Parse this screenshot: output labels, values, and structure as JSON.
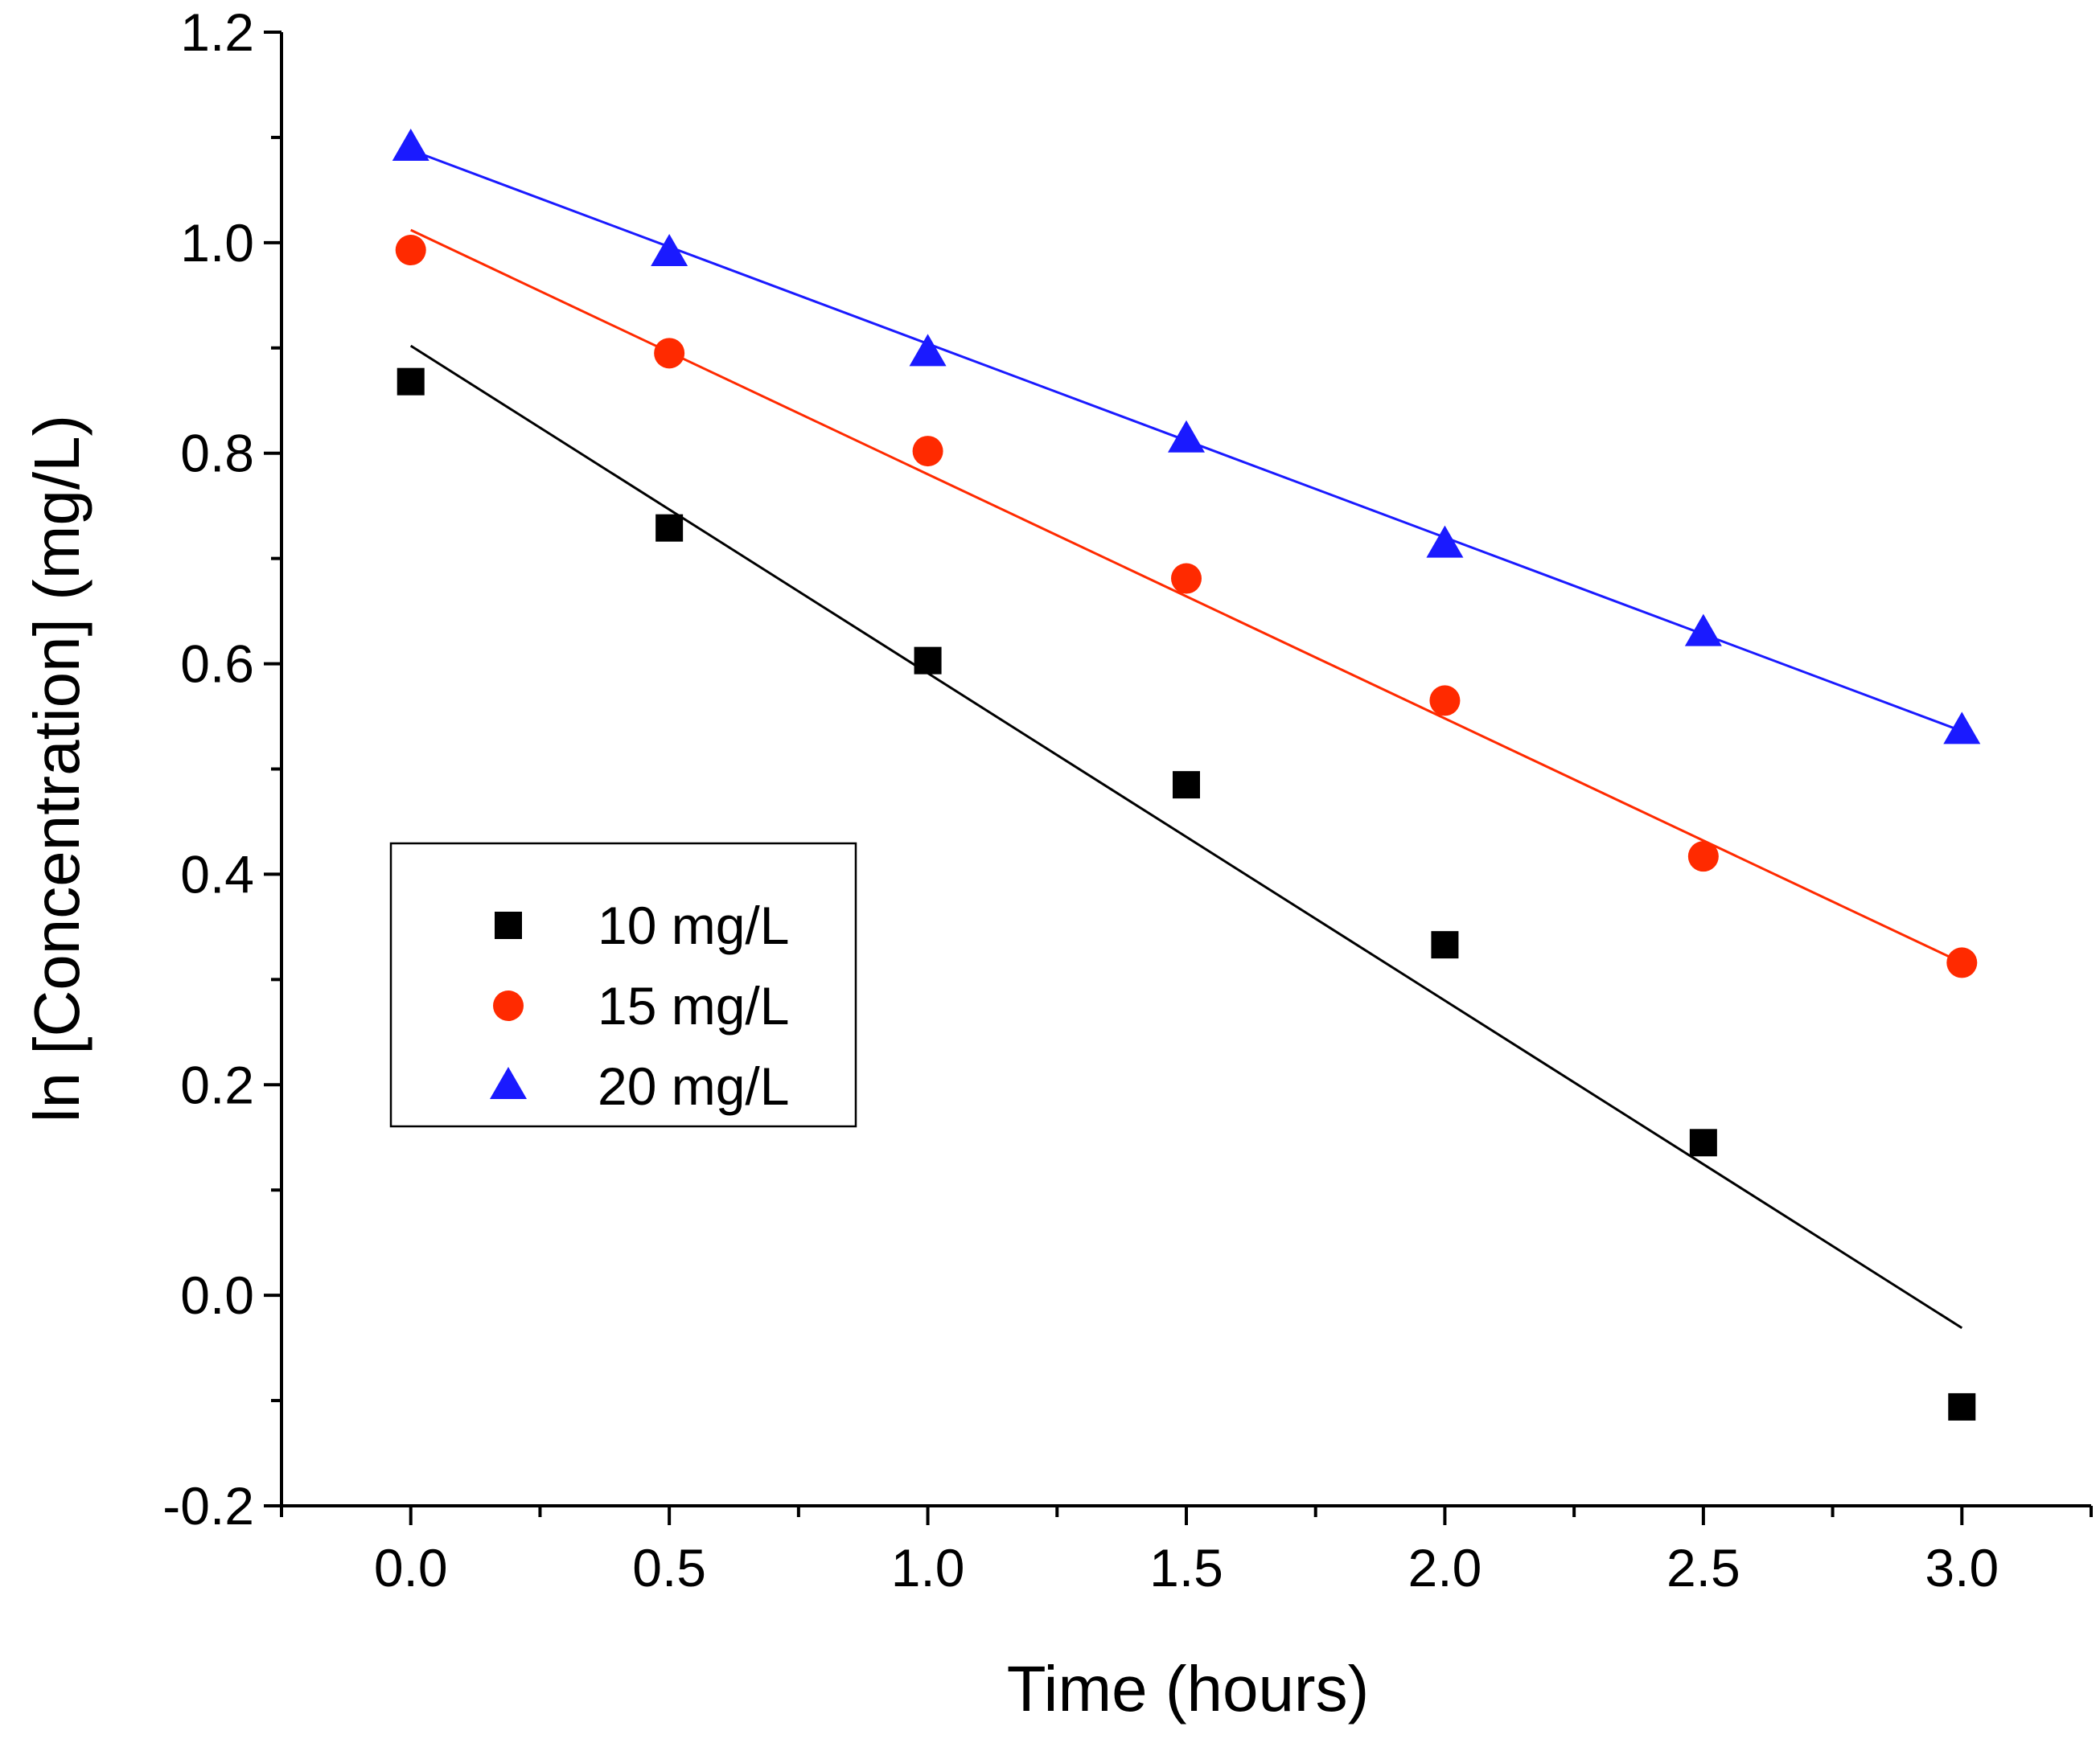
{
  "chart_data": {
    "type": "scatter",
    "xlabel": "Time (hours)",
    "ylabel": "ln [Concentration] (mg/L)",
    "xlim": [
      -0.25,
      3.25
    ],
    "ylim": [
      -0.2,
      1.2
    ],
    "x_ticks": [
      0.0,
      0.5,
      1.0,
      1.5,
      2.0,
      2.5,
      3.0
    ],
    "x_tick_labels": [
      "0.0",
      "0.5",
      "1.0",
      "1.5",
      "2.0",
      "2.5",
      "3.0"
    ],
    "x_minor_ticks": [
      -0.25,
      0.25,
      0.75,
      1.25,
      1.75,
      2.25,
      2.75,
      3.25
    ],
    "y_ticks": [
      -0.2,
      0.0,
      0.2,
      0.4,
      0.6,
      0.8,
      1.0,
      1.2
    ],
    "y_tick_labels": [
      "-0.2",
      "0.0",
      "0.2",
      "0.4",
      "0.6",
      "0.8",
      "1.0",
      "1.2"
    ],
    "y_minor_ticks": [
      -0.1,
      0.1,
      0.3,
      0.5,
      0.7,
      0.9,
      1.1
    ],
    "grid": false,
    "legend_position": "middle-left",
    "x": [
      0.0,
      0.5,
      1.0,
      1.5,
      2.0,
      2.5,
      3.0
    ],
    "series": [
      {
        "name": "10 mg/L",
        "marker": "square",
        "color": "#000000",
        "values": [
          0.868,
          0.729,
          0.603,
          0.485,
          0.333,
          0.145,
          -0.106
        ],
        "fit": {
          "x": [
            0.0,
            3.0
          ],
          "y": [
            0.902,
            -0.031
          ]
        }
      },
      {
        "name": "15 mg/L",
        "marker": "circle",
        "color": "#ff2a00",
        "values": [
          0.993,
          0.895,
          0.802,
          0.681,
          0.565,
          0.417,
          0.316
        ],
        "fit": {
          "x": [
            0.0,
            3.0
          ],
          "y": [
            1.012,
            0.316
          ]
        }
      },
      {
        "name": "20 mg/L",
        "marker": "triangle",
        "color": "#1a1aff",
        "values": [
          1.09,
          0.99,
          0.895,
          0.813,
          0.713,
          0.629,
          0.536
        ],
        "fit": {
          "x": [
            0.0,
            3.0
          ],
          "y": [
            1.088,
            0.536
          ]
        }
      }
    ]
  }
}
